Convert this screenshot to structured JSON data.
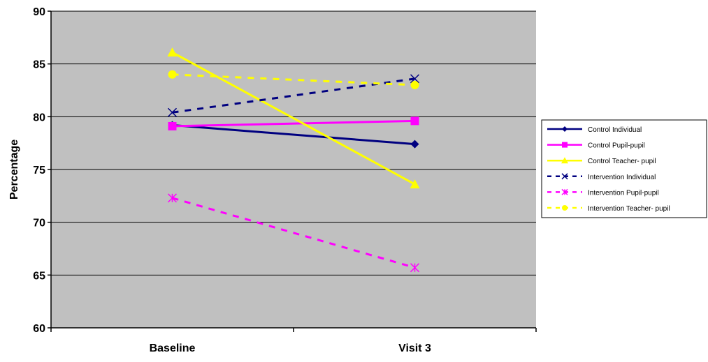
{
  "chart_data": {
    "type": "line",
    "categories": [
      "Baseline",
      "Visit 3"
    ],
    "ylabel": "Percentage",
    "xlabel": "",
    "ylim": [
      60,
      90
    ],
    "yticks": [
      60,
      65,
      70,
      75,
      80,
      85,
      90
    ],
    "grid": "horizontal",
    "legend_position": "right",
    "plot_background": "#c0c0c0",
    "series": [
      {
        "name": "Control Individual",
        "values": [
          79.2,
          77.4
        ],
        "color": "#000080",
        "dash": "solid",
        "marker": "diamond"
      },
      {
        "name": "Control Pupil-pupil",
        "values": [
          79.1,
          79.6
        ],
        "color": "#ff00ff",
        "dash": "solid",
        "marker": "square"
      },
      {
        "name": "Control Teacher- pupil",
        "values": [
          86.1,
          73.6
        ],
        "color": "#ffff00",
        "dash": "solid",
        "marker": "triangle"
      },
      {
        "name": "Intervention Individual",
        "values": [
          80.4,
          83.6
        ],
        "color": "#000080",
        "dash": "dashed",
        "marker": "x"
      },
      {
        "name": "Intervention Pupil-pupil",
        "values": [
          72.3,
          65.7
        ],
        "color": "#ff00ff",
        "dash": "dashed",
        "marker": "asterisk"
      },
      {
        "name": "Intervention Teacher- pupil",
        "values": [
          84.0,
          83.0
        ],
        "color": "#ffff00",
        "dash": "dashed",
        "marker": "circle"
      }
    ]
  }
}
